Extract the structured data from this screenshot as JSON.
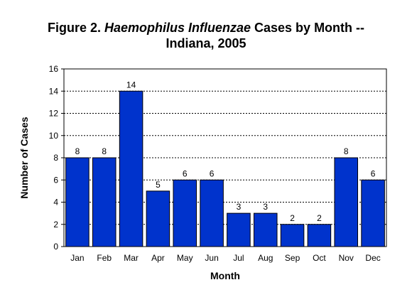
{
  "chart_data": {
    "type": "bar",
    "title_part1": "Figure 2. ",
    "title_italic": "Haemophilus Influenzae",
    "title_part2": " Cases by Month --",
    "title_line2": "Indiana, 2005",
    "xlabel": "Month",
    "ylabel": "Number of Cases",
    "categories": [
      "Jan",
      "Feb",
      "Mar",
      "Apr",
      "May",
      "Jun",
      "Jul",
      "Aug",
      "Sep",
      "Oct",
      "Nov",
      "Dec"
    ],
    "values": [
      8,
      8,
      14,
      5,
      6,
      6,
      3,
      3,
      2,
      2,
      8,
      6
    ],
    "ylim": [
      0,
      16
    ],
    "yticks": [
      0,
      2,
      4,
      6,
      8,
      10,
      12,
      14,
      16
    ],
    "grid": true,
    "data_labels": true,
    "bar_color": "#0033cc"
  }
}
